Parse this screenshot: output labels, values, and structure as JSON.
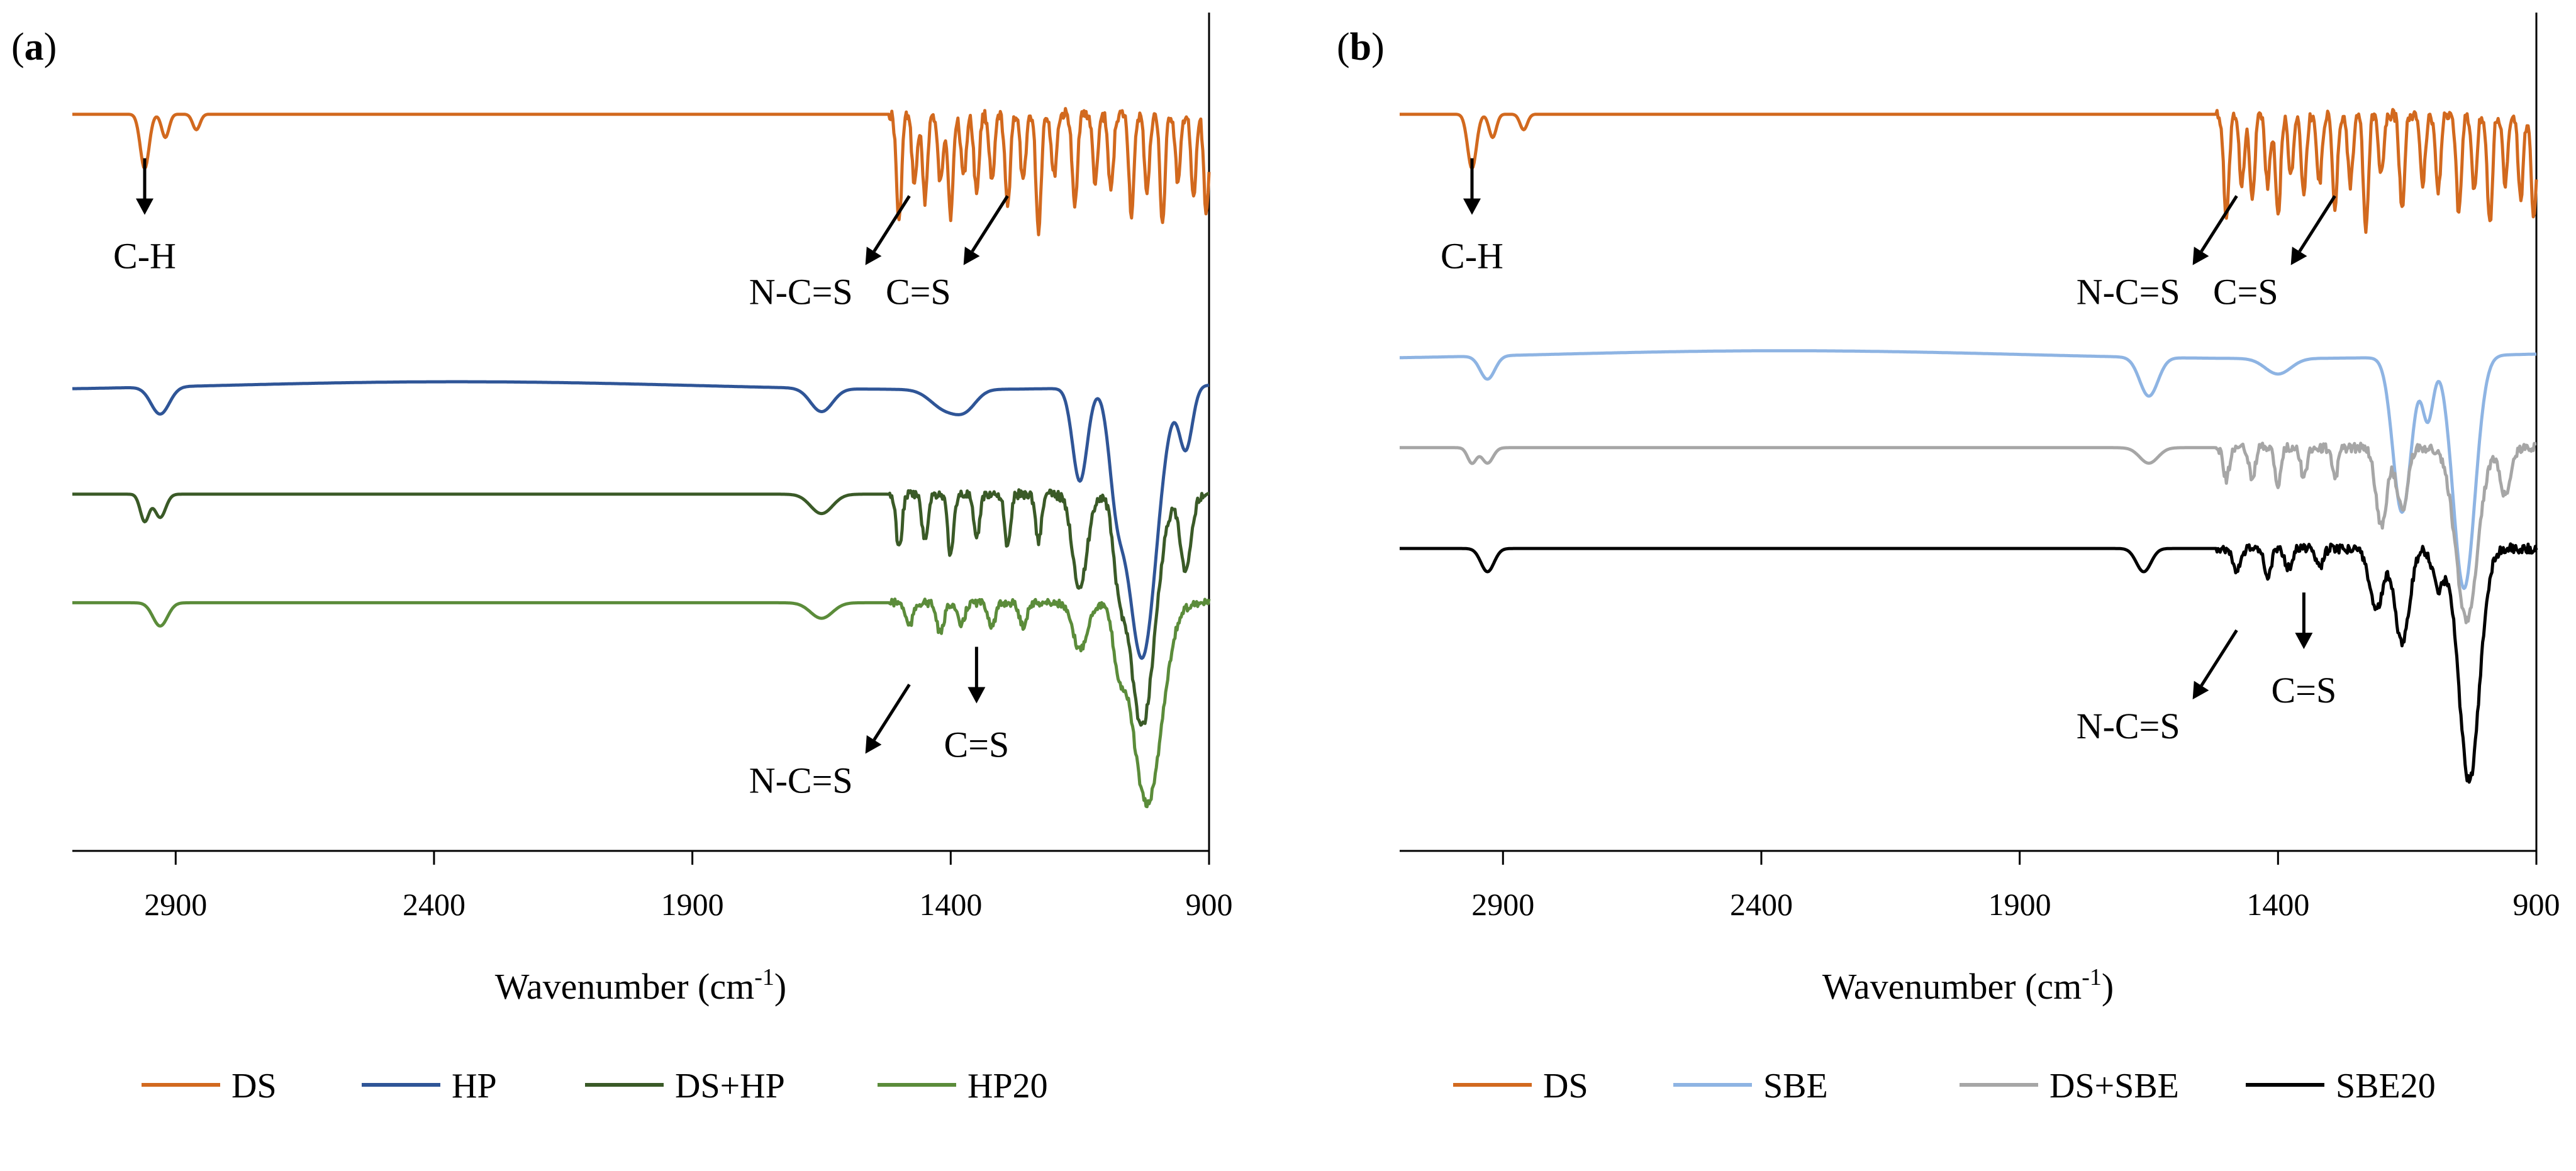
{
  "chart_data": [
    {
      "type": "line",
      "panel_label": "(a)",
      "title": "",
      "xlabel": "Wavenumber (cm-1)",
      "xlabel_parts": {
        "main": "Wavenumber (cm",
        "sup": "-1",
        "end": ")"
      },
      "ylabel": "",
      "xlim": [
        3100,
        900
      ],
      "x_reversed": true,
      "xticks": [
        2900,
        2400,
        1900,
        1400,
        900
      ],
      "xtick_labels": [
        "2900",
        "2400",
        "1900",
        "1400",
        "900"
      ],
      "grid": false,
      "legend": {
        "position": "bottom",
        "entries": [
          "DS",
          "HP",
          "DS+HP",
          "HP20"
        ]
      },
      "series": [
        {
          "name": "DS",
          "color": "#D2691E",
          "offset": 0.95
        },
        {
          "name": "HP",
          "color": "#2F5597",
          "offset": 0.6
        },
        {
          "name": "DS+HP",
          "color": "#3A5A27",
          "offset": 0.46
        },
        {
          "name": "HP20",
          "color": "#5B8C3A",
          "offset": 0.32
        }
      ],
      "annotations": [
        {
          "text": "C-H",
          "x": 2960,
          "arrow": "down",
          "series": "DS"
        },
        {
          "text": "N-C=S",
          "x": 1480,
          "arrow": "diagonal",
          "series": "DS"
        },
        {
          "text": "C=S",
          "x": 1290,
          "arrow": "diagonal",
          "series": "DS"
        },
        {
          "text": "N-C=S",
          "x": 1480,
          "arrow": "diagonal",
          "series": "HP20"
        },
        {
          "text": "C=S",
          "x": 1350,
          "arrow": "down",
          "series": "HP20"
        }
      ]
    },
    {
      "type": "line",
      "panel_label": "(b)",
      "title": "",
      "xlabel": "Wavenumber (cm-1)",
      "xlabel_parts": {
        "main": "Wavenumber (cm",
        "sup": "-1",
        "end": ")"
      },
      "ylabel": "",
      "xlim": [
        3100,
        900
      ],
      "x_reversed": true,
      "xticks": [
        2900,
        2400,
        1900,
        1400,
        900
      ],
      "xtick_labels": [
        "2900",
        "2400",
        "1900",
        "1400",
        "900"
      ],
      "grid": false,
      "legend": {
        "position": "bottom",
        "entries": [
          "DS",
          "SBE",
          "DS+SBE",
          "SBE20"
        ]
      },
      "series": [
        {
          "name": "DS",
          "color": "#D2691E",
          "offset": 0.95
        },
        {
          "name": "SBE",
          "color": "#8EB4E3",
          "offset": 0.64
        },
        {
          "name": "DS+SBE",
          "color": "#A6A6A6",
          "offset": 0.52
        },
        {
          "name": "SBE20",
          "color": "#000000",
          "offset": 0.39
        }
      ],
      "annotations": [
        {
          "text": "C-H",
          "x": 2960,
          "arrow": "down",
          "series": "DS"
        },
        {
          "text": "N-C=S",
          "x": 1480,
          "arrow": "diagonal",
          "series": "DS"
        },
        {
          "text": "C=S",
          "x": 1290,
          "arrow": "diagonal",
          "series": "DS"
        },
        {
          "text": "N-C=S",
          "x": 1480,
          "arrow": "diagonal",
          "series": "SBE20"
        },
        {
          "text": "C=S",
          "x": 1350,
          "arrow": "down",
          "series": "SBE20"
        }
      ]
    }
  ]
}
